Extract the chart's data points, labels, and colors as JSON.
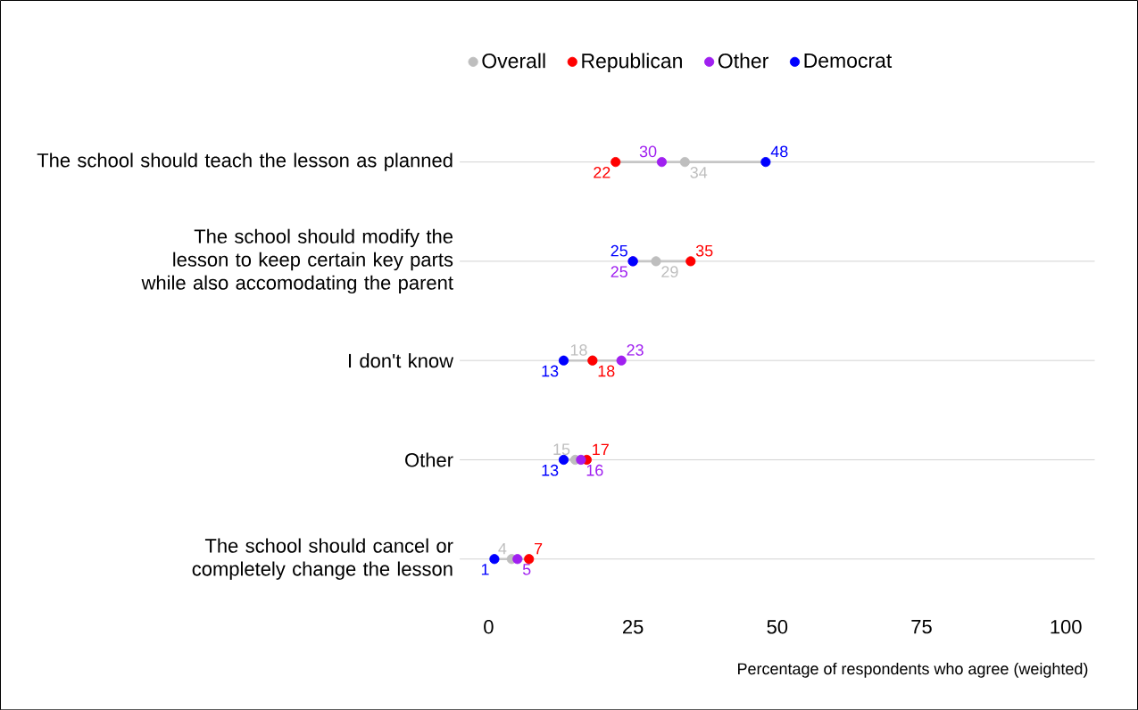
{
  "chart_data": {
    "type": "scatter",
    "orientation": "horizontal",
    "categories": [
      "The school should teach the lesson as planned",
      "The school should modify the lesson to keep certain key parts while also accomodating the parent",
      "I don't know",
      "Other",
      "The school should cancel or completely change the lesson"
    ],
    "series": [
      {
        "name": "Overall",
        "color": "#bebebe",
        "values": [
          34,
          29,
          18,
          15,
          4
        ]
      },
      {
        "name": "Republican",
        "color": "#ff0000",
        "values": [
          22,
          35,
          18,
          17,
          7
        ]
      },
      {
        "name": "Other",
        "color": "#a020f0",
        "values": [
          30,
          25,
          23,
          16,
          5
        ]
      },
      {
        "name": "Democrat",
        "color": "#0000ff",
        "values": [
          48,
          25,
          13,
          13,
          1
        ]
      }
    ],
    "xlabel": "Percentage of respondents who agree (weighted)",
    "xlim": [
      -5,
      105
    ],
    "xticks": [
      0,
      25,
      50,
      75,
      100
    ],
    "grid": "y",
    "legend": "top",
    "marker": "circle",
    "data_labels": true
  }
}
